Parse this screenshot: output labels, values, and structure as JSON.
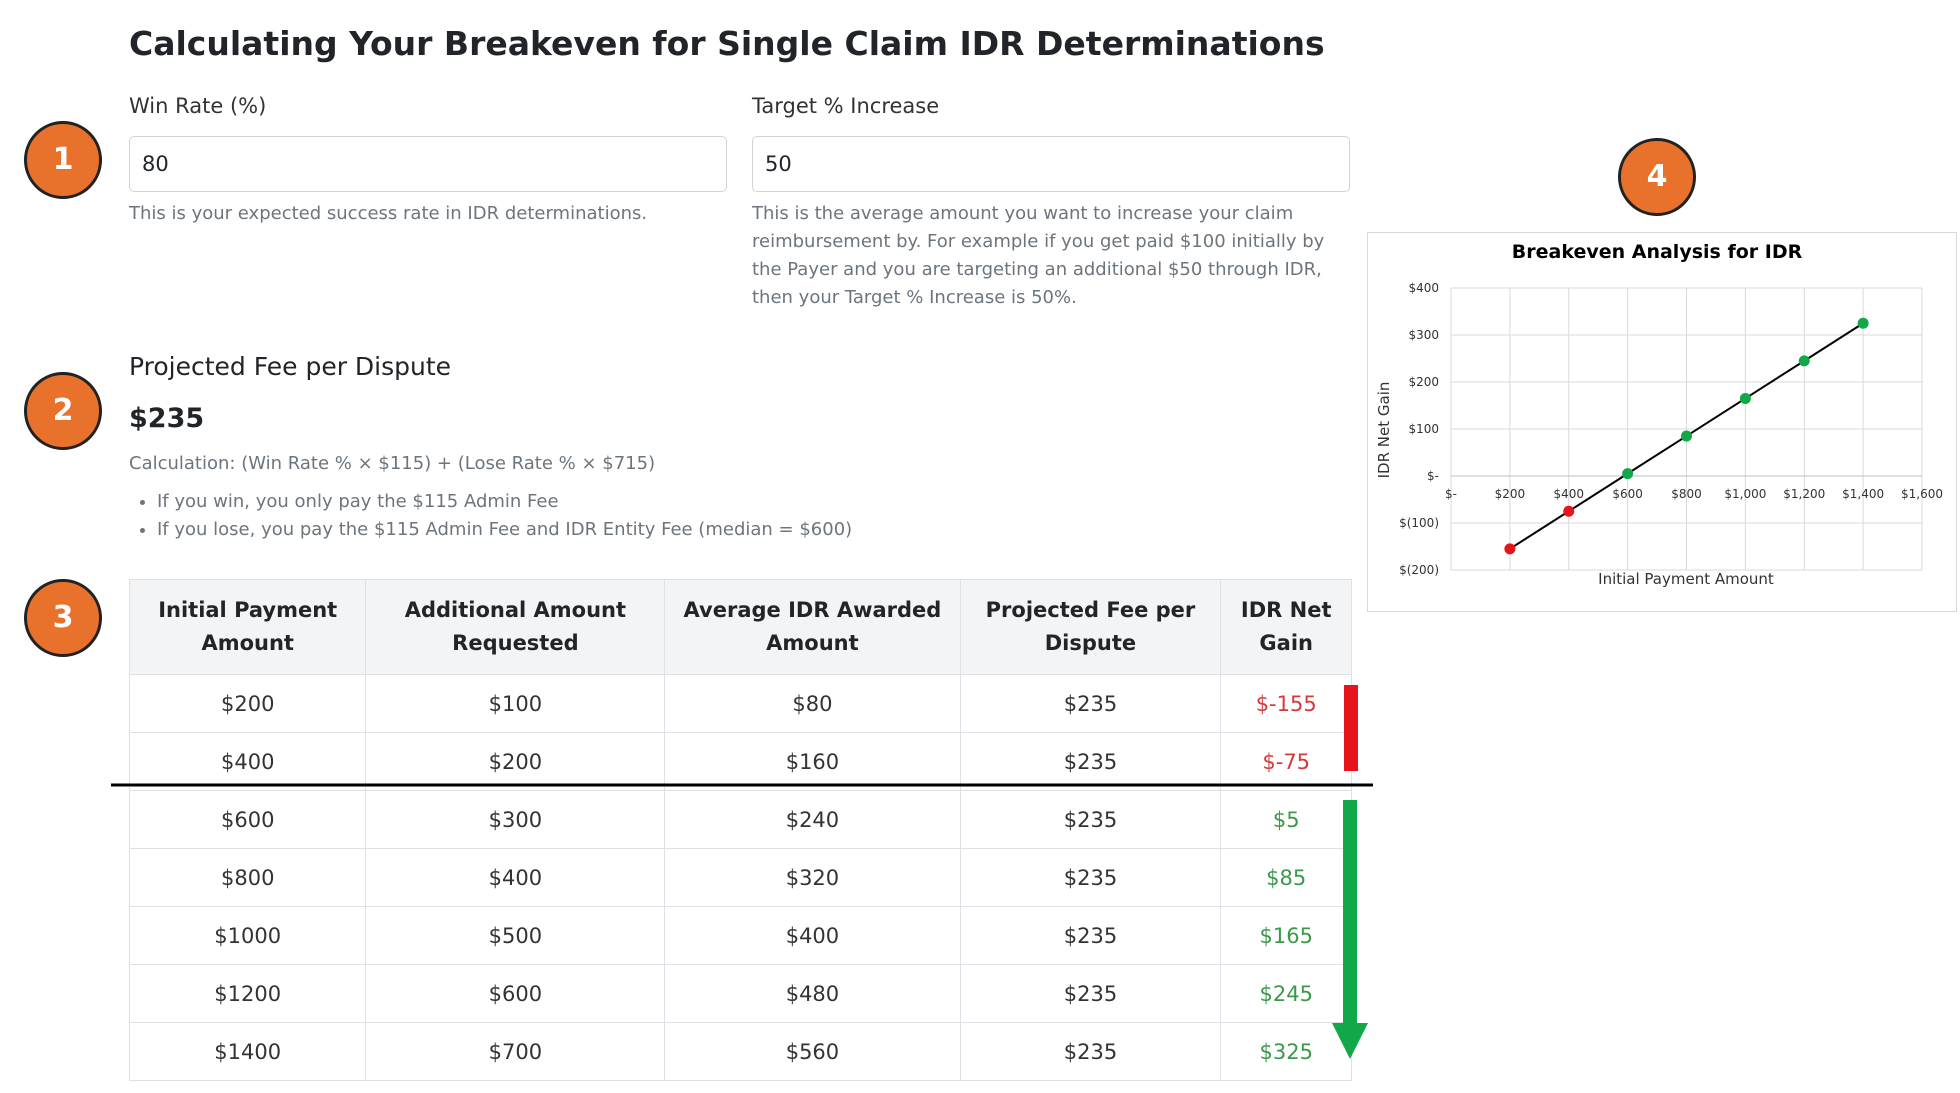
{
  "title": "Calculating Your Breakeven for Single Claim IDR Determinations",
  "badges": [
    "1",
    "2",
    "3",
    "4"
  ],
  "inputs": [
    {
      "label": "Win Rate (%)",
      "value": "80",
      "help": "This is your expected success rate in IDR determinations."
    },
    {
      "label": "Target % Increase",
      "value": "50",
      "help": "This is the average amount you want to increase your claim reimbursement by. For example if you get paid $100 initially by the Payer and you are targeting an additional $50 through IDR, then your Target % Increase is 50%."
    }
  ],
  "fee": {
    "heading": "Projected Fee per Dispute",
    "amount": "$235",
    "calculation": "Calculation: (Win Rate % × $115) + (Lose Rate % × $715)",
    "bullets": [
      "If you win, you only pay the $115 Admin Fee",
      "If you lose, you pay the $115 Admin Fee and IDR Entity Fee (median = $600)"
    ]
  },
  "table": {
    "columns": [
      "Initial Payment Amount",
      "Additional Amount Requested",
      "Average IDR Awarded Amount",
      "Projected Fee per Dispute",
      "IDR Net Gain"
    ],
    "rows": [
      [
        "$200",
        "$100",
        "$80",
        "$235",
        "$-155"
      ],
      [
        "$400",
        "$200",
        "$160",
        "$235",
        "$-75"
      ],
      [
        "$600",
        "$300",
        "$240",
        "$235",
        "$5"
      ],
      [
        "$800",
        "$400",
        "$320",
        "$235",
        "$85"
      ],
      [
        "$1000",
        "$500",
        "$400",
        "$235",
        "$165"
      ],
      [
        "$1200",
        "$600",
        "$480",
        "$235",
        "$245"
      ],
      [
        "$1400",
        "$700",
        "$560",
        "$235",
        "$325"
      ]
    ],
    "net_colors": [
      "#d9383a",
      "#d9383a",
      "#3a9a4a",
      "#3a9a4a",
      "#3a9a4a",
      "#3a9a4a",
      "#3a9a4a"
    ]
  },
  "chart_data": {
    "type": "line",
    "title": "Breakeven Analysis for IDR",
    "x_label": "Initial Payment Amount",
    "y_label": "IDR Net Gain",
    "x": [
      200,
      400,
      600,
      800,
      1000,
      1200,
      1400
    ],
    "values": [
      -155,
      -75,
      5,
      85,
      165,
      245,
      325
    ],
    "color": "#000000",
    "point_colors": [
      "#e8141c",
      "#e8141c",
      "#12a84a",
      "#12a84a",
      "#12a84a",
      "#12a84a",
      "#12a84a"
    ],
    "xlim": [
      0,
      1600
    ],
    "xticks": [
      {
        "value": 0,
        "label": "$-"
      },
      {
        "value": 200,
        "label": "$200"
      },
      {
        "value": 400,
        "label": "$400"
      },
      {
        "value": 600,
        "label": "$600"
      },
      {
        "value": 800,
        "label": "$800"
      },
      {
        "value": 1000,
        "label": "$1,000"
      },
      {
        "value": 1200,
        "label": "$1,200"
      },
      {
        "value": 1400,
        "label": "$1,400"
      },
      {
        "value": 1600,
        "label": "$1,600"
      }
    ],
    "ylim": [
      -200,
      400
    ],
    "yticks": [
      {
        "value": -200,
        "label": "$(200)"
      },
      {
        "value": -100,
        "label": "$(100)"
      },
      {
        "value": 0,
        "label": "$-"
      },
      {
        "value": 100,
        "label": "$100"
      },
      {
        "value": 200,
        "label": "$200"
      },
      {
        "value": 300,
        "label": "$300"
      },
      {
        "value": 400,
        "label": "$400"
      }
    ],
    "grid": true
  }
}
